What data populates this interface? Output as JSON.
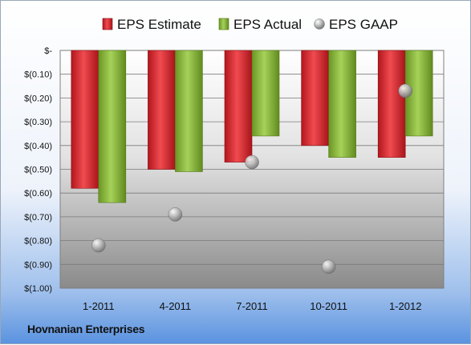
{
  "company": "Hovnanian Enterprises",
  "chart_data": {
    "type": "bar",
    "categories": [
      "1-2011",
      "4-2011",
      "7-2011",
      "10-2011",
      "1-2012"
    ],
    "series": [
      {
        "name": "EPS Estimate",
        "type": "bar",
        "color": "#d01f27",
        "values": [
          -0.58,
          -0.5,
          -0.47,
          -0.4,
          -0.45
        ]
      },
      {
        "name": "EPS Actual",
        "type": "bar",
        "color": "#7fab2e",
        "values": [
          -0.64,
          -0.51,
          -0.36,
          -0.45,
          -0.36
        ]
      },
      {
        "name": "EPS GAAP",
        "type": "scatter",
        "color": "#a8a8a8",
        "values": [
          -0.82,
          -0.69,
          -0.47,
          -0.91,
          -0.17
        ]
      }
    ],
    "ylim": [
      -1.0,
      0.0
    ],
    "yticks": [
      0,
      -0.1,
      -0.2,
      -0.3,
      -0.4,
      -0.5,
      -0.6,
      -0.7,
      -0.8,
      -0.9,
      -1.0
    ],
    "ytick_labels": [
      "$-",
      "$(0.10)",
      "$(0.20)",
      "$(0.30)",
      "$(0.40)",
      "$(0.50)",
      "$(0.60)",
      "$(0.70)",
      "$(0.80)",
      "$(0.90)",
      "$(1.00)"
    ],
    "grid": true,
    "legend_position": "top"
  }
}
